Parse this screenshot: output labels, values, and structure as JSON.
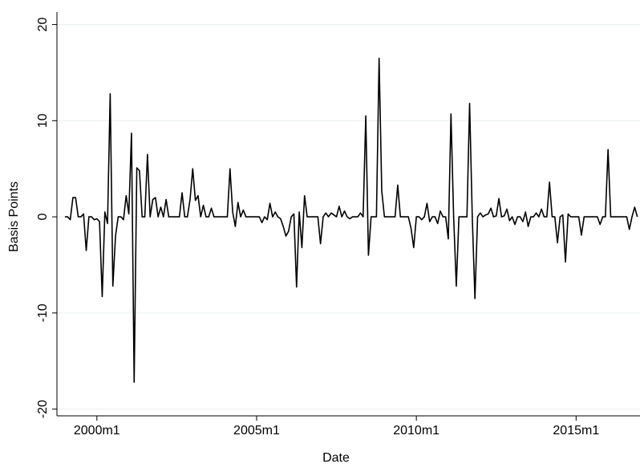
{
  "chart_data": {
    "type": "line",
    "x_label": "Date",
    "y_label": "Basis Points",
    "x": [
      468,
      469,
      470,
      471,
      472,
      473,
      474,
      475,
      476,
      477,
      478,
      479,
      480,
      481,
      482,
      483,
      484,
      485,
      486,
      487,
      488,
      489,
      490,
      491,
      492,
      493,
      494,
      495,
      496,
      497,
      498,
      499,
      500,
      501,
      502,
      503,
      504,
      505,
      506,
      507,
      508,
      509,
      510,
      511,
      512,
      513,
      514,
      515,
      516,
      517,
      518,
      519,
      520,
      521,
      522,
      523,
      524,
      525,
      526,
      527,
      528,
      529,
      530,
      531,
      532,
      533,
      534,
      535,
      536,
      537,
      538,
      539,
      540,
      541,
      542,
      543,
      544,
      545,
      546,
      547,
      548,
      549,
      550,
      551,
      552,
      553,
      554,
      555,
      556,
      557,
      558,
      559,
      560,
      561,
      562,
      563,
      564,
      565,
      566,
      567,
      568,
      569,
      570,
      571,
      572,
      573,
      574,
      575,
      576,
      577,
      578,
      579,
      580,
      581,
      582,
      583,
      584,
      585,
      586,
      587,
      588,
      589,
      590,
      591,
      592,
      593,
      594,
      595,
      596,
      597,
      598,
      599,
      600,
      601,
      602,
      603,
      604,
      605,
      606,
      607,
      608,
      609,
      610,
      611,
      612,
      613,
      614,
      615,
      616,
      617,
      618,
      619,
      620,
      621,
      622,
      623,
      624,
      625,
      626,
      627,
      628,
      629,
      630,
      631,
      632,
      633,
      634,
      635,
      636,
      637,
      638,
      639,
      640,
      641,
      642,
      643,
      644,
      645,
      646,
      647,
      648,
      649,
      650,
      651,
      652,
      653,
      654,
      655,
      656,
      657,
      658,
      659,
      660,
      661,
      662,
      663,
      664,
      665,
      666,
      667,
      668,
      669,
      670,
      671,
      672,
      673,
      674,
      675,
      676,
      677,
      678,
      679,
      680,
      681,
      682,
      683
    ],
    "series": [
      {
        "name": "Basis Points",
        "color": "#000000",
        "values": [
          0,
          0,
          -0.3,
          2,
          2,
          0,
          0,
          0.3,
          -3.5,
          0,
          0,
          -0.3,
          -0.2,
          -0.5,
          -8.3,
          0.5,
          -0.7,
          12.8,
          -7.2,
          -2,
          0,
          0,
          -0.3,
          2.2,
          0.3,
          8.7,
          -17.2,
          5.1,
          4.8,
          0,
          0,
          6.5,
          0,
          1.8,
          2,
          0,
          1,
          0,
          1.8,
          0,
          0,
          0,
          0,
          0,
          2.5,
          0,
          0,
          1.8,
          5,
          1.7,
          2.2,
          0,
          1.2,
          0,
          0,
          0.9,
          0,
          0,
          0,
          0,
          0,
          0,
          5,
          0.5,
          -1,
          1.5,
          0,
          0.7,
          0,
          0,
          0,
          0,
          0,
          0,
          -0.6,
          0,
          -0.3,
          1.4,
          0,
          0.5,
          0,
          -0.2,
          -1,
          -2,
          -1.5,
          0,
          0.3,
          -7.3,
          0.5,
          -3.2,
          2.2,
          0,
          0,
          0,
          0,
          0,
          -2.8,
          0,
          0.4,
          0,
          0.4,
          0.2,
          0,
          1.1,
          0,
          0.6,
          0,
          -0.2,
          0,
          0,
          0,
          0.4,
          0,
          10.5,
          -4,
          0,
          0,
          0,
          16.5,
          2.7,
          0,
          0,
          0,
          0,
          0,
          3.3,
          0,
          0,
          0,
          0,
          -1.2,
          -3.2,
          0,
          0,
          -0.3,
          0,
          1.4,
          -0.5,
          0,
          0,
          -0.7,
          0.6,
          0,
          0,
          -2.3,
          10.7,
          0,
          -7.2,
          0,
          0,
          0,
          0,
          11.8,
          0,
          -8.5,
          0,
          0.4,
          0,
          0.2,
          0.3,
          0.9,
          0,
          0.1,
          1.9,
          0,
          0.1,
          0.8,
          -0.4,
          0,
          -0.8,
          0,
          0,
          -0.5,
          0.5,
          -1,
          0,
          0,
          0.4,
          0,
          0.8,
          0,
          0,
          3.6,
          0,
          0,
          -2.7,
          0,
          0.2,
          -4.7,
          0.3,
          0,
          0,
          0,
          0,
          -1.9,
          0,
          0,
          0,
          0,
          0,
          0,
          -0.8,
          0,
          0,
          7,
          0,
          0,
          0,
          0,
          0,
          0,
          0,
          -1.3,
          0,
          1,
          0
        ]
      }
    ],
    "xlim": [
      465,
      684
    ],
    "xticks": [
      {
        "value": 480,
        "label": "2000m1"
      },
      {
        "value": 540,
        "label": "2005m1"
      },
      {
        "value": 600,
        "label": "2010m1"
      },
      {
        "value": 660,
        "label": "2015m1"
      }
    ],
    "ylim": [
      -20.7,
      21.3
    ],
    "yticks": [
      -20,
      -10,
      0,
      10,
      20
    ],
    "grid": true
  }
}
